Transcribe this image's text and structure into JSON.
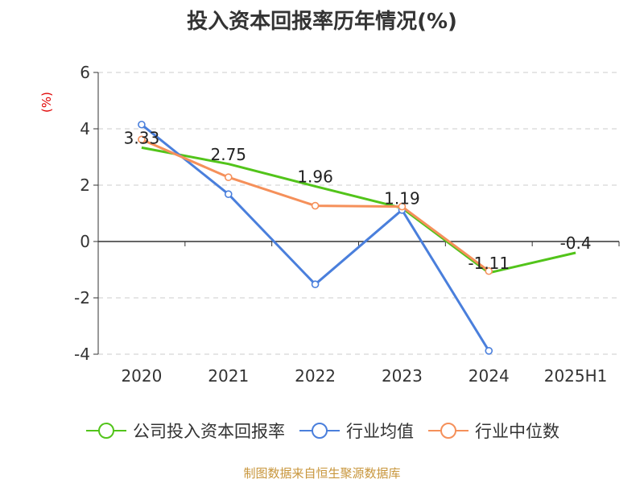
{
  "title": "投入资本回报率历年情况(%)",
  "y_unit": "(%)",
  "footer": "制图数据来自恒生聚源数据库",
  "chart_data": {
    "type": "line",
    "categories": [
      "2020",
      "2021",
      "2022",
      "2023",
      "2024",
      "2025H1"
    ],
    "ylim": [
      -4,
      6
    ],
    "yticks": [
      -4,
      -2,
      0,
      2,
      4,
      6
    ],
    "grid": true,
    "legend_position": "bottom",
    "series": [
      {
        "name": "公司投入资本回报率",
        "color": "#52c41a",
        "values": [
          3.33,
          2.75,
          1.96,
          1.19,
          -1.11,
          -0.4
        ],
        "data_labels": [
          "3.33",
          "2.75",
          "1.96",
          "1.19",
          "-1.11",
          "-0.4"
        ],
        "markers": false
      },
      {
        "name": "行业均值",
        "color": "#4a7fdc",
        "values": [
          4.15,
          1.68,
          -1.52,
          1.12,
          -3.88,
          null
        ],
        "markers": true
      },
      {
        "name": "行业中位数",
        "color": "#f5905a",
        "values": [
          3.62,
          2.28,
          1.27,
          1.24,
          -1.05,
          null
        ],
        "markers": true
      }
    ]
  }
}
